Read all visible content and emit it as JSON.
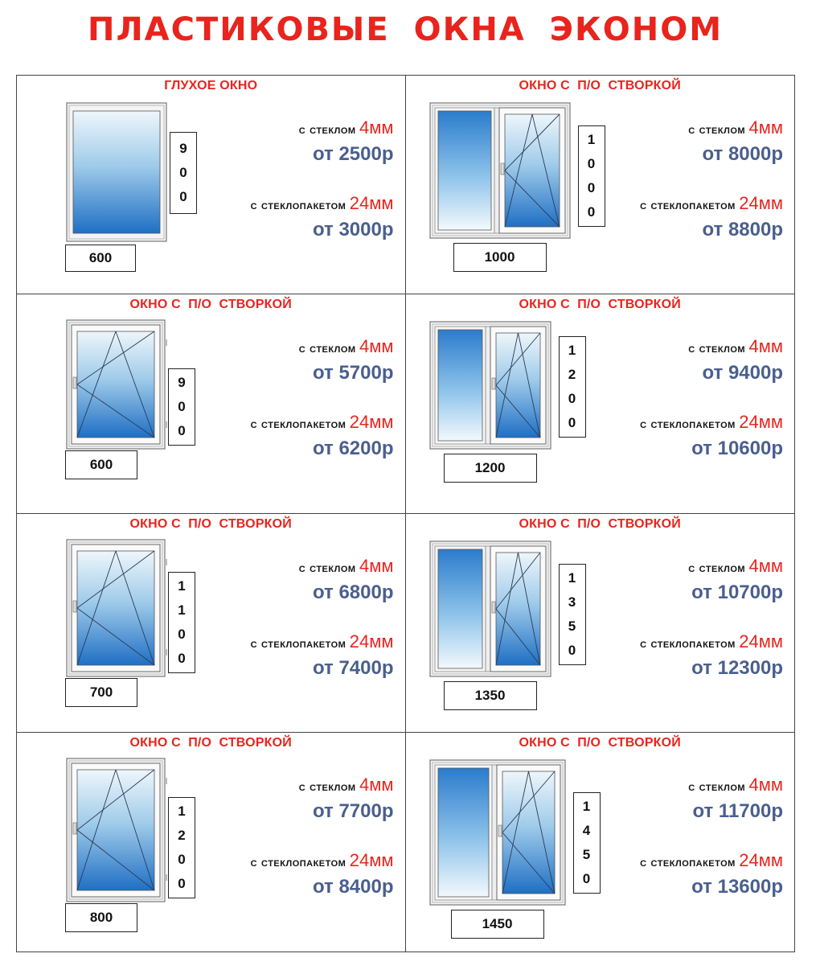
{
  "title": "ПЛАСТИКОВЫЕ  ОКНА  ЭКОНОМ",
  "labels": {
    "glass": "с стеклом",
    "glass_mm": "4мм",
    "package": "с стеклопакетом",
    "package_mm": "24мм"
  },
  "cells": [
    {
      "title": "ГЛУХОЕ ОКНО",
      "type": "fixed",
      "width": "600",
      "height": [
        "9",
        "0",
        "0"
      ],
      "price_glass": "от 2500р",
      "price_package": "от 3000р"
    },
    {
      "title": "ОКНО С  П/О  СТВОРКОЙ",
      "type": "double",
      "width": "1000",
      "height": [
        "1",
        "0",
        "0",
        "0"
      ],
      "price_glass": "от 8000р",
      "price_package": "от 8800р"
    },
    {
      "title": "ОКНО С  П/О  СТВОРКОЙ",
      "type": "single",
      "width": "600",
      "height": [
        "9",
        "0",
        "0"
      ],
      "price_glass": "от 5700р",
      "price_package": "от 6200р"
    },
    {
      "title": "ОКНО С  П/О  СТВОРКОЙ",
      "type": "double",
      "width": "1200",
      "height": [
        "1",
        "2",
        "0",
        "0"
      ],
      "price_glass": "от 9400р",
      "price_package": "от 10600р"
    },
    {
      "title": "ОКНО С  П/О  СТВОРКОЙ",
      "type": "single",
      "width": "700",
      "height": [
        "1",
        "1",
        "0",
        "0"
      ],
      "price_glass": "от 6800р",
      "price_package": "от 7400р"
    },
    {
      "title": "ОКНО С  П/О  СТВОРКОЙ",
      "type": "double",
      "width": "1350",
      "height": [
        "1",
        "3",
        "5",
        "0"
      ],
      "price_glass": "от 10700р",
      "price_package": "от 12300р"
    },
    {
      "title": "ОКНО С  П/О  СТВОРКОЙ",
      "type": "single",
      "width": "800",
      "height": [
        "1",
        "2",
        "0",
        "0"
      ],
      "price_glass": "от 7700р",
      "price_package": "от 8400р"
    },
    {
      "title": "ОКНО С  П/О  СТВОРКОЙ",
      "type": "double",
      "width": "1450",
      "height": [
        "1",
        "4",
        "5",
        "0"
      ],
      "price_glass": "от 11700р",
      "price_package": "от 13600р"
    }
  ]
}
